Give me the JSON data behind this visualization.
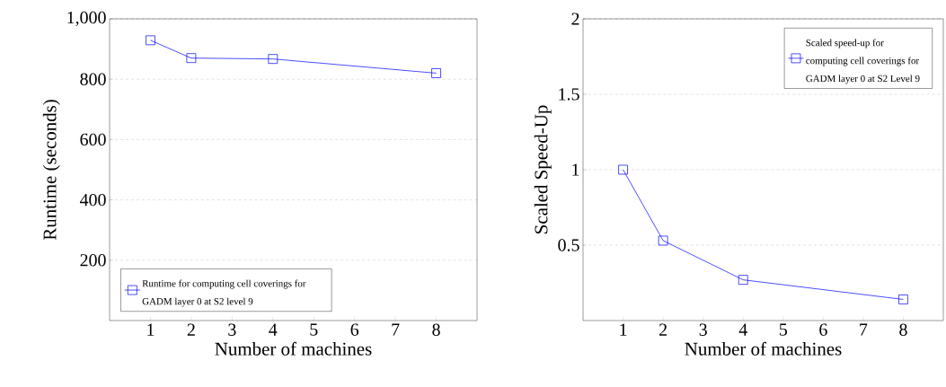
{
  "chart_data": [
    {
      "type": "line",
      "xlabel": "Number of machines",
      "ylabel": "Runtime (seconds)",
      "x": [
        1,
        2,
        4,
        8
      ],
      "series": [
        {
          "name": "Runtime for computing cell coverings for GADM layer 0 at S2 level 9",
          "color": "#0000ff",
          "values": [
            929,
            870,
            867,
            820
          ]
        }
      ],
      "xlim": [
        0,
        9
      ],
      "ylim": [
        0,
        1000
      ],
      "xticks": [
        1,
        2,
        3,
        4,
        5,
        6,
        7,
        8
      ],
      "yticks": [
        200,
        400,
        600,
        800,
        {
          "value": 1000,
          "label": "1,000"
        }
      ],
      "grid": "y",
      "legend": "bottom left",
      "marker": "square"
    },
    {
      "type": "line",
      "xlabel": "Number of machines",
      "ylabel": "Scaled Speed-Up",
      "x": [
        1,
        2,
        4,
        8
      ],
      "series": [
        {
          "name": "Scaled speed-up for computing cell coverings for GADM layer 0 at S2 Level 9",
          "color": "#0000ff",
          "values": [
            1.0,
            0.53,
            0.27,
            0.14
          ]
        }
      ],
      "xlim": [
        0,
        9
      ],
      "ylim": [
        0,
        2
      ],
      "xticks": [
        1,
        2,
        3,
        4,
        5,
        6,
        7,
        8
      ],
      "yticks": [
        0.5,
        1,
        1.5,
        2
      ],
      "grid": "y",
      "legend": "top right",
      "marker": "square"
    }
  ]
}
